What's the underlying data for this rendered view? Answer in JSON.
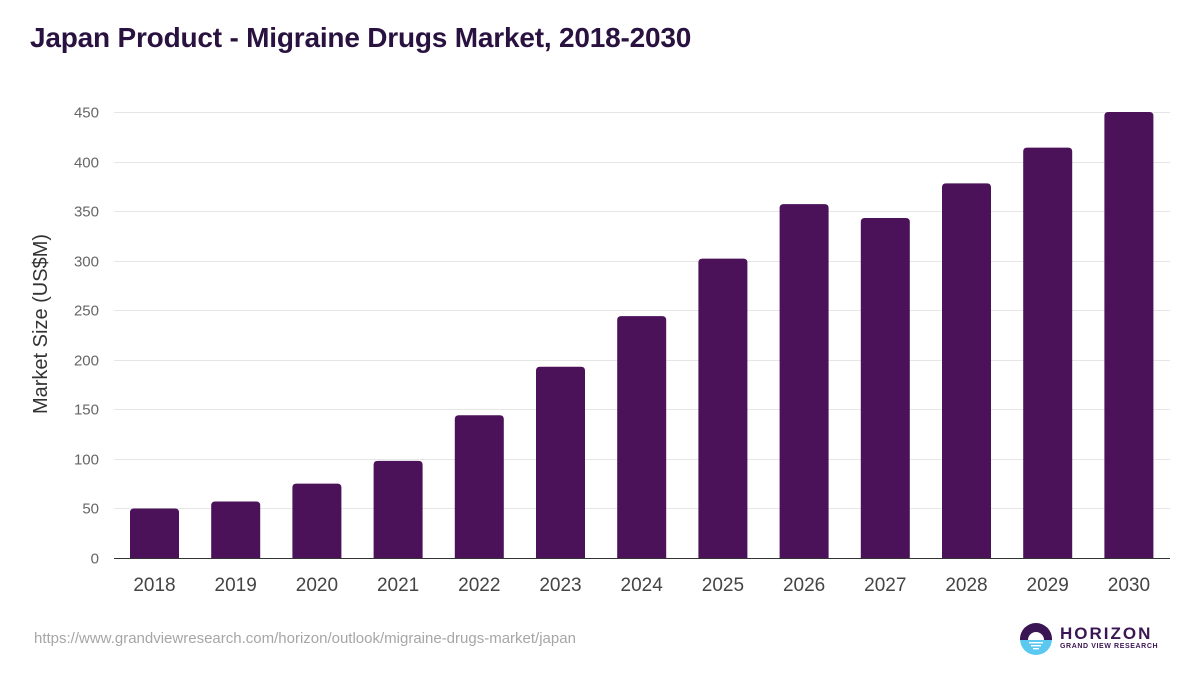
{
  "header": {
    "title": "Japan Product - Migraine Drugs Market, 2018-2030"
  },
  "footer": {
    "source_url": "https://www.grandviewresearch.com/horizon/outlook/migraine-drugs-market/japan",
    "logo_main": "HORIZON",
    "logo_sub": "GRAND VIEW RESEARCH"
  },
  "colors": {
    "bar": "#4b1159",
    "title": "#2a1240",
    "grid": "#e6e6e6",
    "axis": "#333333",
    "tick_label": "#666666",
    "logo_dark": "#3b1654",
    "logo_light": "#5bc8f0"
  },
  "chart_data": {
    "type": "bar",
    "title": "Japan Product - Migraine Drugs Market, 2018-2030",
    "xlabel": "",
    "ylabel": "Market Size (US$M)",
    "categories": [
      "2018",
      "2019",
      "2020",
      "2021",
      "2022",
      "2023",
      "2024",
      "2025",
      "2026",
      "2027",
      "2028",
      "2029",
      "2030"
    ],
    "series": [
      {
        "name": "Market Size",
        "values": [
          50,
          57,
          75,
          98,
          144,
          193,
          244,
          302,
          357,
          343,
          378,
          414,
          450
        ]
      }
    ],
    "ylim": [
      0,
      450
    ],
    "yticks": [
      0,
      50,
      100,
      150,
      200,
      250,
      300,
      350,
      400,
      450
    ],
    "grid": true,
    "legend": "none"
  }
}
